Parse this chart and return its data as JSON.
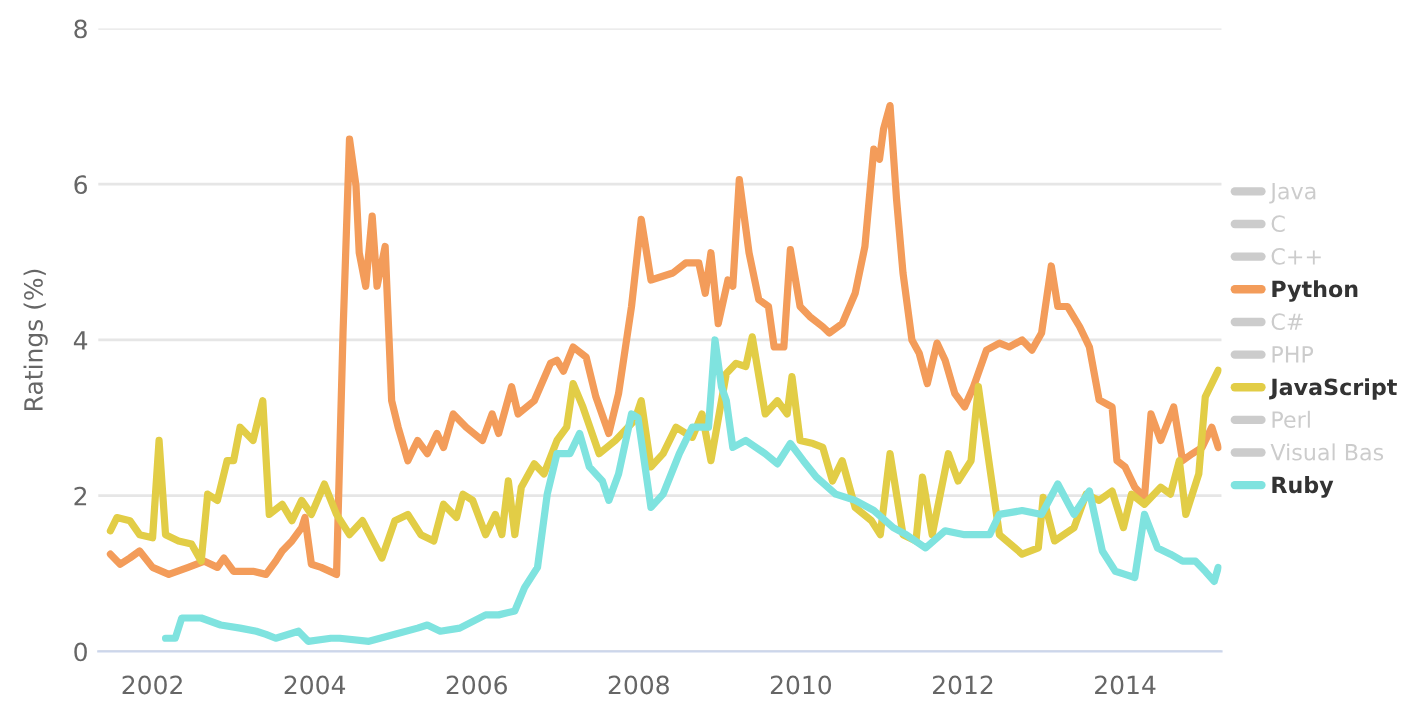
{
  "chart_data": {
    "type": "line",
    "ylabel": "Ratings (%)",
    "xlim": [
      2001.33,
      2015.19
    ],
    "xticks": [
      2002,
      2004,
      2006,
      2008,
      2010,
      2012,
      2014
    ],
    "ylim": [
      0,
      8
    ],
    "yticks": [
      0,
      2,
      4,
      6,
      8
    ],
    "grid": "y",
    "legend": "right",
    "marker": "none",
    "line_style": "solid",
    "series": [
      {
        "name": "Java",
        "color": "#cccccc"
      },
      {
        "name": "C",
        "color": "#cccccc"
      },
      {
        "name": "C++",
        "color": "#cccccc"
      },
      {
        "name": "Python",
        "color": "#f39c5a",
        "x": [
          2001.48,
          2001.6,
          2001.72,
          2001.84,
          2002.0,
          2002.2,
          2002.44,
          2002.64,
          2002.8,
          2002.88,
          2003.0,
          2003.24,
          2003.4,
          2003.52,
          2003.6,
          2003.72,
          2003.84,
          2003.88,
          2003.96,
          2004.08,
          2004.27,
          2004.35,
          2004.43,
          2004.51,
          2004.55,
          2004.63,
          2004.71,
          2004.77,
          2004.87,
          2004.95,
          2005.03,
          2005.15,
          2005.27,
          2005.39,
          2005.51,
          2005.59,
          2005.71,
          2005.87,
          2006.07,
          2006.19,
          2006.27,
          2006.43,
          2006.51,
          2006.71,
          2006.91,
          2006.99,
          2007.07,
          2007.19,
          2007.35,
          2007.47,
          2007.63,
          2007.75,
          2007.91,
          2008.03,
          2008.15,
          2008.42,
          2008.58,
          2008.74,
          2008.82,
          2008.89,
          2008.98,
          2009.1,
          2009.16,
          2009.24,
          2009.36,
          2009.48,
          2009.6,
          2009.67,
          2009.79,
          2009.87,
          2009.99,
          2010.11,
          2010.27,
          2010.35,
          2010.51,
          2010.67,
          2010.79,
          2010.9,
          2010.97,
          2011.02,
          2011.1,
          2011.18,
          2011.26,
          2011.37,
          2011.46,
          2011.56,
          2011.68,
          2011.78,
          2011.9,
          2012.02,
          2012.13,
          2012.29,
          2012.45,
          2012.57,
          2012.73,
          2012.85,
          2012.97,
          2013.09,
          2013.17,
          2013.29,
          2013.44,
          2013.56,
          2013.68,
          2013.84,
          2013.9,
          2014.0,
          2014.12,
          2014.24,
          2014.32,
          2014.44,
          2014.6,
          2014.71,
          2014.83,
          2014.95,
          2015.07,
          2015.15
        ],
        "values": [
          1.25,
          1.12,
          1.2,
          1.29,
          1.08,
          0.99,
          1.08,
          1.16,
          1.08,
          1.2,
          1.03,
          1.03,
          0.99,
          1.16,
          1.29,
          1.42,
          1.59,
          1.72,
          1.12,
          1.08,
          0.99,
          4.09,
          6.58,
          5.98,
          5.12,
          4.69,
          5.59,
          4.69,
          5.2,
          3.22,
          2.88,
          2.45,
          2.71,
          2.54,
          2.8,
          2.62,
          3.05,
          2.88,
          2.71,
          3.05,
          2.8,
          3.4,
          3.05,
          3.22,
          3.7,
          3.74,
          3.6,
          3.91,
          3.78,
          3.27,
          2.8,
          3.31,
          4.43,
          5.55,
          4.77,
          4.86,
          4.99,
          4.99,
          4.6,
          5.12,
          4.21,
          4.77,
          4.69,
          6.06,
          5.12,
          4.52,
          4.43,
          3.91,
          3.91,
          5.16,
          4.43,
          4.3,
          4.17,
          4.09,
          4.21,
          4.6,
          5.2,
          6.45,
          6.32,
          6.71,
          7.01,
          5.81,
          4.86,
          4.0,
          3.83,
          3.44,
          3.96,
          3.74,
          3.31,
          3.14,
          3.4,
          3.87,
          3.96,
          3.91,
          4.0,
          3.87,
          4.09,
          4.95,
          4.43,
          4.43,
          4.17,
          3.91,
          3.23,
          3.14,
          2.45,
          2.37,
          2.11,
          1.98,
          3.05,
          2.71,
          3.14,
          2.45,
          2.54,
          2.62,
          2.88,
          2.62
        ]
      },
      {
        "name": "C#",
        "color": "#cccccc"
      },
      {
        "name": "PHP",
        "color": "#cccccc"
      },
      {
        "name": "JavaScript",
        "color": "#e2cd46",
        "x": [
          2001.48,
          2001.56,
          2001.72,
          2001.84,
          2002.0,
          2002.08,
          2002.16,
          2002.32,
          2002.48,
          2002.6,
          2002.68,
          2002.8,
          2002.92,
          2003.0,
          2003.08,
          2003.24,
          2003.36,
          2003.44,
          2003.6,
          2003.72,
          2003.84,
          2003.96,
          2004.12,
          2004.27,
          2004.43,
          2004.59,
          2004.83,
          2004.99,
          2005.15,
          2005.31,
          2005.47,
          2005.59,
          2005.75,
          2005.83,
          2005.95,
          2006.11,
          2006.23,
          2006.31,
          2006.39,
          2006.47,
          2006.55,
          2006.71,
          2006.83,
          2006.99,
          2007.11,
          2007.19,
          2007.31,
          2007.51,
          2007.71,
          2007.95,
          2008.03,
          2008.15,
          2008.3,
          2008.46,
          2008.66,
          2008.78,
          2008.89,
          2009.08,
          2009.2,
          2009.32,
          2009.4,
          2009.56,
          2009.71,
          2009.83,
          2009.89,
          2009.99,
          2010.15,
          2010.27,
          2010.39,
          2010.51,
          2010.67,
          2010.87,
          2010.98,
          2011.1,
          2011.26,
          2011.42,
          2011.5,
          2011.62,
          2011.82,
          2011.94,
          2012.1,
          2012.19,
          2012.33,
          2012.45,
          2012.73,
          2012.93,
          2012.99,
          2013.13,
          2013.37,
          2013.52,
          2013.68,
          2013.84,
          2013.98,
          2014.08,
          2014.24,
          2014.44,
          2014.56,
          2014.67,
          2014.75,
          2014.91,
          2014.99,
          2015.15
        ],
        "values": [
          1.55,
          1.72,
          1.68,
          1.5,
          1.46,
          2.71,
          1.5,
          1.42,
          1.38,
          1.16,
          2.02,
          1.94,
          2.45,
          2.45,
          2.88,
          2.71,
          3.22,
          1.76,
          1.89,
          1.68,
          1.94,
          1.76,
          2.15,
          1.76,
          1.5,
          1.68,
          1.2,
          1.68,
          1.76,
          1.5,
          1.42,
          1.89,
          1.72,
          2.02,
          1.94,
          1.5,
          1.76,
          1.5,
          2.19,
          1.5,
          2.11,
          2.41,
          2.28,
          2.71,
          2.88,
          3.44,
          3.14,
          2.54,
          2.71,
          2.97,
          3.22,
          2.37,
          2.54,
          2.88,
          2.75,
          3.05,
          2.45,
          3.57,
          3.7,
          3.66,
          4.04,
          3.05,
          3.22,
          3.05,
          3.53,
          2.71,
          2.67,
          2.62,
          2.19,
          2.45,
          1.85,
          1.68,
          1.5,
          2.54,
          1.5,
          1.42,
          2.24,
          1.5,
          2.54,
          2.19,
          2.45,
          3.4,
          2.37,
          1.5,
          1.25,
          1.33,
          1.98,
          1.42,
          1.59,
          2.02,
          1.94,
          2.06,
          1.59,
          2.02,
          1.89,
          2.11,
          2.02,
          2.45,
          1.76,
          2.28,
          3.27,
          3.61
        ]
      },
      {
        "name": "Perl",
        "color": "#cccccc"
      },
      {
        "name": "Visual Bas",
        "color": "#cccccc"
      },
      {
        "name": "Ruby",
        "color": "#7fe3df",
        "x": [
          2002.16,
          2002.28,
          2002.36,
          2002.6,
          2002.84,
          2003.08,
          2003.28,
          2003.4,
          2003.52,
          2003.8,
          2003.92,
          2004.2,
          2004.31,
          2004.67,
          2004.99,
          2005.27,
          2005.39,
          2005.55,
          2005.79,
          2006.11,
          2006.27,
          2006.47,
          2006.59,
          2006.75,
          2006.87,
          2006.99,
          2007.15,
          2007.27,
          2007.39,
          2007.55,
          2007.63,
          2007.75,
          2007.91,
          2007.99,
          2008.15,
          2008.3,
          2008.5,
          2008.66,
          2008.86,
          2008.94,
          2009.02,
          2009.08,
          2009.16,
          2009.32,
          2009.56,
          2009.71,
          2009.87,
          2010.03,
          2010.19,
          2010.43,
          2010.67,
          2010.9,
          2011.14,
          2011.3,
          2011.54,
          2011.78,
          2012.02,
          2012.33,
          2012.45,
          2012.73,
          2012.97,
          2013.17,
          2013.37,
          2013.56,
          2013.72,
          2013.88,
          2014.0,
          2014.12,
          2014.24,
          2014.4,
          2014.56,
          2014.71,
          2014.87,
          2014.99,
          2015.1,
          2015.15
        ],
        "values": [
          0.17,
          0.17,
          0.43,
          0.43,
          0.34,
          0.3,
          0.26,
          0.22,
          0.17,
          0.26,
          0.13,
          0.17,
          0.17,
          0.13,
          0.22,
          0.3,
          0.34,
          0.26,
          0.3,
          0.47,
          0.47,
          0.52,
          0.82,
          1.08,
          2.02,
          2.54,
          2.54,
          2.8,
          2.37,
          2.19,
          1.94,
          2.28,
          3.05,
          3.0,
          1.85,
          2.02,
          2.54,
          2.88,
          2.88,
          4.0,
          3.4,
          3.22,
          2.62,
          2.71,
          2.54,
          2.41,
          2.67,
          2.45,
          2.24,
          2.02,
          1.94,
          1.81,
          1.59,
          1.5,
          1.33,
          1.55,
          1.5,
          1.5,
          1.76,
          1.81,
          1.76,
          2.15,
          1.76,
          2.06,
          1.29,
          1.03,
          0.99,
          0.95,
          1.76,
          1.33,
          1.25,
          1.16,
          1.16,
          1.03,
          0.9,
          1.08
        ]
      }
    ]
  }
}
